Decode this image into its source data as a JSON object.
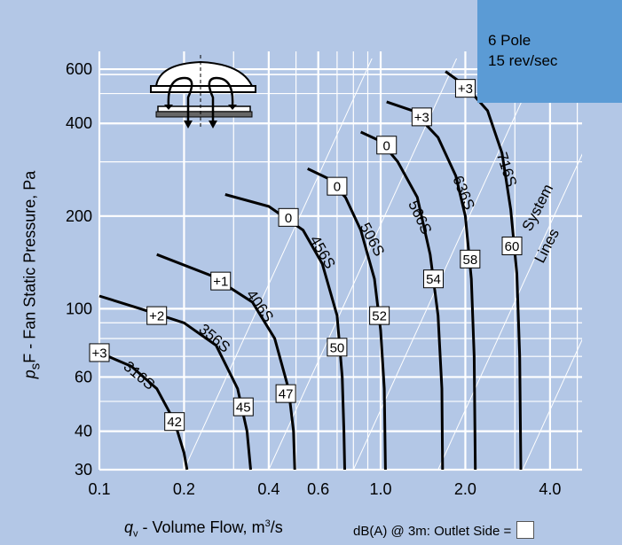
{
  "chart_data": {
    "type": "line",
    "x_axis": {
      "scale": "log",
      "range": [
        0.1,
        5.2
      ],
      "tick_labels": [
        "0.1",
        "0.2",
        "0.4",
        "0.6",
        "1.0",
        "2.0",
        "4.0"
      ],
      "tick_values": [
        0.1,
        0.2,
        0.4,
        0.6,
        1.0,
        2.0,
        4.0
      ]
    },
    "y_axis": {
      "scale": "log",
      "range": [
        30,
        650
      ],
      "tick_labels": [
        "600",
        "400",
        "200",
        "100",
        "60",
        "40",
        "30"
      ],
      "tick_values": [
        600,
        400,
        200,
        100,
        60,
        40,
        30
      ]
    },
    "xlabel": {
      "symbol": "q",
      "subscript": "v",
      "text": " - Volume Flow, m",
      "superscript": "3",
      "suffix": "/s"
    },
    "ylabel": {
      "symbol": "p",
      "subscript": "s",
      "text": "F - Fan Static Pressure, Pa"
    },
    "grid": true,
    "series": [
      {
        "name": "316S",
        "pitch_label": "+3",
        "noise_db": "42",
        "points": [
          [
            0.1,
            72
          ],
          [
            0.13,
            65
          ],
          [
            0.16,
            55
          ],
          [
            0.185,
            43
          ],
          [
            0.2,
            34
          ],
          [
            0.205,
            30
          ]
        ],
        "pitch_at": [
          0.1,
          72
        ],
        "db_at": [
          0.185,
          43
        ],
        "label_at": [
          0.135,
          59
        ],
        "label_angle": 40
      },
      {
        "name": "356S",
        "pitch_label": "+2",
        "noise_db": "45",
        "points": [
          [
            0.1,
            110
          ],
          [
            0.14,
            100
          ],
          [
            0.2,
            90
          ],
          [
            0.26,
            76
          ],
          [
            0.31,
            55
          ],
          [
            0.335,
            40
          ],
          [
            0.345,
            30
          ]
        ],
        "pitch_at": [
          0.16,
          95
        ],
        "db_at": [
          0.325,
          48
        ],
        "label_at": [
          0.25,
          78
        ],
        "label_angle": 40
      },
      {
        "name": "406S",
        "pitch_label": "+1",
        "noise_db": "47",
        "points": [
          [
            0.16,
            150
          ],
          [
            0.25,
            128
          ],
          [
            0.35,
            105
          ],
          [
            0.42,
            80
          ],
          [
            0.47,
            55
          ],
          [
            0.49,
            40
          ],
          [
            0.495,
            30
          ]
        ],
        "pitch_at": [
          0.27,
          123
        ],
        "db_at": [
          0.46,
          53
        ],
        "label_at": [
          0.36,
          100
        ],
        "label_angle": 55
      },
      {
        "name": "456S",
        "pitch_label": "0",
        "noise_db": "50",
        "points": [
          [
            0.28,
            235
          ],
          [
            0.4,
            215
          ],
          [
            0.53,
            180
          ],
          [
            0.62,
            140
          ],
          [
            0.7,
            95
          ],
          [
            0.73,
            60
          ],
          [
            0.74,
            40
          ],
          [
            0.745,
            30
          ]
        ],
        "pitch_at": [
          0.47,
          198
        ],
        "db_at": [
          0.7,
          75
        ],
        "label_at": [
          0.6,
          150
        ],
        "label_angle": 60
      },
      {
        "name": "506S",
        "pitch_label": "0",
        "noise_db": "52",
        "points": [
          [
            0.55,
            285
          ],
          [
            0.65,
            265
          ],
          [
            0.75,
            230
          ],
          [
            0.85,
            180
          ],
          [
            0.95,
            125
          ],
          [
            1.0,
            85
          ],
          [
            1.03,
            55
          ],
          [
            1.04,
            30
          ]
        ],
        "pitch_at": [
          0.7,
          250
        ],
        "db_at": [
          0.99,
          95
        ],
        "label_at": [
          0.9,
          165
        ],
        "label_angle": 62
      },
      {
        "name": "566S",
        "pitch_label": "0",
        "noise_db": "54",
        "points": [
          [
            0.85,
            375
          ],
          [
            1.0,
            350
          ],
          [
            1.15,
            300
          ],
          [
            1.35,
            230
          ],
          [
            1.5,
            150
          ],
          [
            1.6,
            95
          ],
          [
            1.65,
            55
          ],
          [
            1.66,
            30
          ]
        ],
        "pitch_at": [
          1.05,
          340
        ],
        "db_at": [
          1.54,
          125
        ],
        "label_at": [
          1.33,
          195
        ],
        "label_angle": 65
      },
      {
        "name": "636S",
        "pitch_label": "+3",
        "noise_db": "58",
        "points": [
          [
            1.05,
            470
          ],
          [
            1.3,
            440
          ],
          [
            1.6,
            360
          ],
          [
            1.85,
            270
          ],
          [
            2.0,
            200
          ],
          [
            2.1,
            125
          ],
          [
            2.15,
            70
          ],
          [
            2.17,
            30
          ]
        ],
        "pitch_at": [
          1.4,
          420
        ],
        "db_at": [
          2.08,
          145
        ],
        "label_at": [
          1.9,
          235
        ],
        "label_angle": 68
      },
      {
        "name": "716S",
        "pitch_label": "+3",
        "noise_db": "60",
        "points": [
          [
            1.7,
            590
          ],
          [
            2.0,
            530
          ],
          [
            2.4,
            440
          ],
          [
            2.7,
            320
          ],
          [
            2.9,
            210
          ],
          [
            3.05,
            130
          ],
          [
            3.12,
            70
          ],
          [
            3.15,
            30
          ]
        ],
        "pitch_at": [
          2.0,
          520
        ],
        "db_at": [
          2.93,
          160
        ],
        "label_at": [
          2.7,
          280
        ],
        "label_angle": 72
      }
    ],
    "system_lines": {
      "label": [
        "System",
        "Lines"
      ],
      "lines": [
        [
          0.2,
          30
        ],
        [
          0.4,
          30
        ],
        [
          0.8,
          30
        ],
        [
          1.6,
          30
        ],
        [
          3.2,
          30
        ],
        [
          6.4,
          30
        ]
      ]
    },
    "annotation": {
      "lines": [
        "6 Pole",
        "15 rev/sec"
      ],
      "background": "#5b9bd5"
    },
    "footnote": "dB(A) @ 3m:  Outlet Side ="
  },
  "colors": {
    "plot_background": "#b3c7e6",
    "grid": "#ffffff",
    "curve": "#000000",
    "info_box": "#5b9bd5"
  },
  "icons": [
    "roof-fan-icon"
  ]
}
